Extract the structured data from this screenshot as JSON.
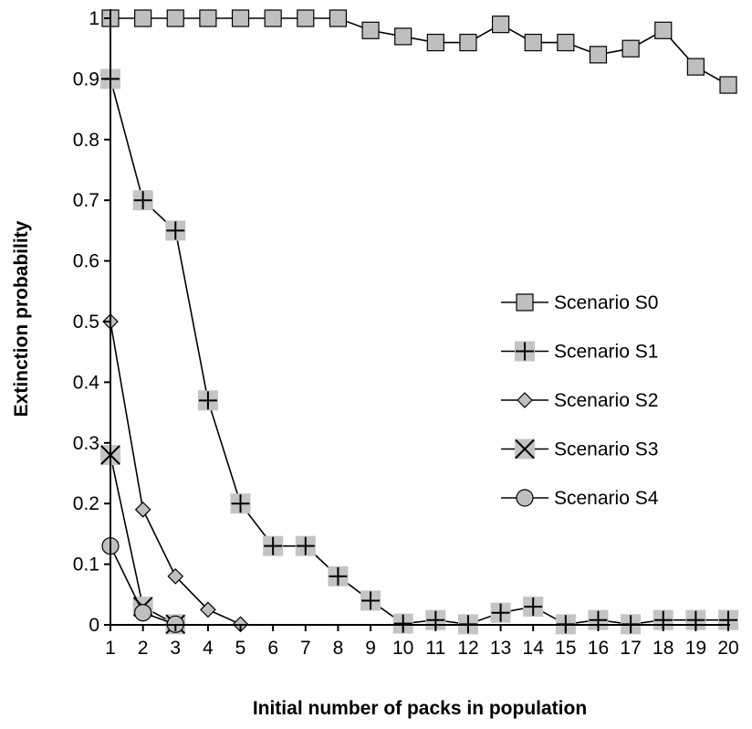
{
  "chart_data": {
    "type": "line",
    "title": "",
    "xlabel": "Initial number of packs in population",
    "ylabel": "Extinction probability",
    "x": [
      1,
      2,
      3,
      4,
      5,
      6,
      7,
      8,
      9,
      10,
      11,
      12,
      13,
      14,
      15,
      16,
      17,
      18,
      19,
      20
    ],
    "x_tick_labels": [
      "1",
      "2",
      "3",
      "4",
      "5",
      "6",
      "7",
      "8",
      "9",
      "10",
      "11",
      "12",
      "13",
      "14",
      "15",
      "16",
      "17",
      "18",
      "19",
      "20"
    ],
    "y_ticks": [
      0,
      0.1,
      0.2,
      0.3,
      0.4,
      0.5,
      0.6,
      0.7,
      0.8,
      0.9,
      1
    ],
    "y_tick_labels": [
      "0",
      "0.1",
      "0.2",
      "0.3",
      "0.4",
      "0.5",
      "0.6",
      "0.7",
      "0.8",
      "0.9",
      "1"
    ],
    "xlim": [
      1,
      20
    ],
    "ylim": [
      0,
      1
    ],
    "grid": false,
    "legend_position": "right",
    "series": [
      {
        "name": "Scenario S0",
        "marker": "square",
        "x": [
          1,
          2,
          3,
          4,
          5,
          6,
          7,
          8,
          9,
          10,
          11,
          12,
          13,
          14,
          15,
          16,
          17,
          18,
          19,
          20
        ],
        "values": [
          1,
          1,
          1,
          1,
          1,
          1,
          1,
          1,
          0.98,
          0.97,
          0.96,
          0.96,
          0.99,
          0.96,
          0.96,
          0.94,
          0.95,
          0.98,
          0.92,
          0.89
        ]
      },
      {
        "name": "Scenario S1",
        "marker": "plus",
        "x": [
          1,
          2,
          3,
          4,
          5,
          6,
          7,
          8,
          9,
          10,
          11,
          12,
          13,
          14,
          15,
          16,
          17,
          18,
          19,
          20
        ],
        "values": [
          0.9,
          0.7,
          0.65,
          0.37,
          0.2,
          0.13,
          0.13,
          0.08,
          0.04,
          0.002,
          0.008,
          0.001,
          0.02,
          0.03,
          0.001,
          0.008,
          0.001,
          0.008,
          0.008,
          0.008
        ]
      },
      {
        "name": "Scenario S2",
        "marker": "diamond",
        "x": [
          1,
          2,
          3,
          4,
          5
        ],
        "values": [
          0.5,
          0.19,
          0.08,
          0.025,
          0.001
        ]
      },
      {
        "name": "Scenario S3",
        "marker": "x",
        "x": [
          1,
          2,
          3
        ],
        "values": [
          0.28,
          0.03,
          0.001
        ]
      },
      {
        "name": "Scenario S4",
        "marker": "circle",
        "x": [
          1,
          2,
          3
        ],
        "values": [
          0.13,
          0.02,
          0.001
        ]
      }
    ]
  }
}
